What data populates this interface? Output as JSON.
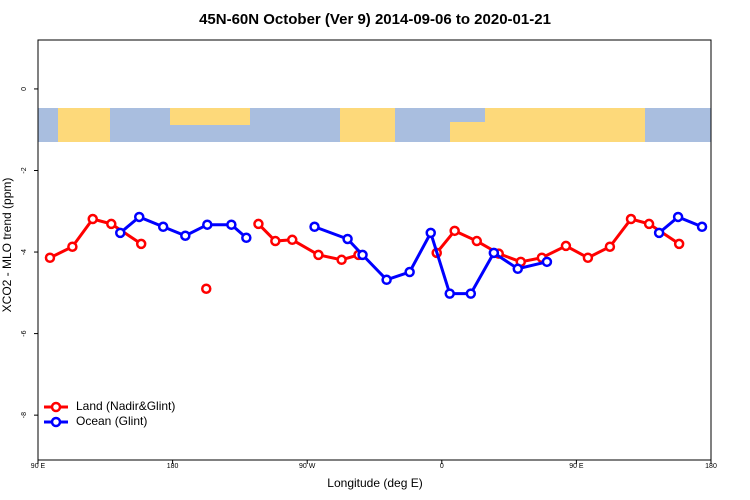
{
  "chart_data": {
    "type": "line",
    "title": "45N-60N October (Ver 9)   2014-09-06 to 2020-01-21",
    "x_label": "Longitude (deg E)",
    "y_label": "XCO2 - MLO trend (ppm)",
    "xlim": [
      90,
      540
    ],
    "xticks": [
      {
        "value": 90,
        "label": "90 E"
      },
      180,
      {
        "value": 270,
        "label": "90 W"
      },
      {
        "value": 360,
        "label": "0"
      },
      {
        "value": 450,
        "label": "90 E"
      },
      {
        "value": 540,
        "label": "180"
      }
    ],
    "ylim": [
      -9.1,
      1.2
    ],
    "yticks": [
      0,
      -2,
      -4,
      -6,
      -8
    ],
    "legend": "bottom-left",
    "series": [
      {
        "name": "Land (Nadir&Glint)",
        "color": "#ff0000",
        "x": [
          98,
          113,
          126.6,
          139,
          159,
          null,
          202.5,
          null,
          237.4,
          248.7,
          260,
          277.5,
          293,
          304.3,
          null,
          356.6,
          368.6,
          383.4,
          398.1,
          412.8,
          426.9,
          443,
          457.7,
          472.4,
          486.5,
          498.6,
          518.7
        ],
        "values": [
          -4.14,
          -3.87,
          -3.19,
          -3.31,
          -3.8,
          null,
          -4.9,
          null,
          -3.31,
          -3.73,
          -3.7,
          -4.07,
          -4.19,
          -4.07,
          null,
          -4.02,
          -3.48,
          -3.73,
          -4.04,
          -4.24,
          -4.14,
          -3.85,
          -4.14,
          -3.87,
          -3.19,
          -3.31,
          -3.8
        ]
      },
      {
        "name": "Ocean (Glint)",
        "color": "#0000ff",
        "x": [
          145,
          157.7,
          173.7,
          188.5,
          203.2,
          219.3,
          229.3,
          null,
          274.9,
          297,
          307,
          323.1,
          338.5,
          352.6,
          365.3,
          379.4,
          394.8,
          410.8,
          430.3,
          null,
          505.3,
          518,
          534
        ],
        "values": [
          -3.53,
          -3.14,
          -3.38,
          -3.6,
          -3.33,
          -3.33,
          -3.65,
          null,
          -3.38,
          -3.68,
          -4.07,
          -4.68,
          -4.49,
          -3.53,
          -5.02,
          -5.02,
          -4.02,
          -4.41,
          -4.24,
          null,
          -3.53,
          -3.14,
          -3.38
        ]
      }
    ]
  }
}
